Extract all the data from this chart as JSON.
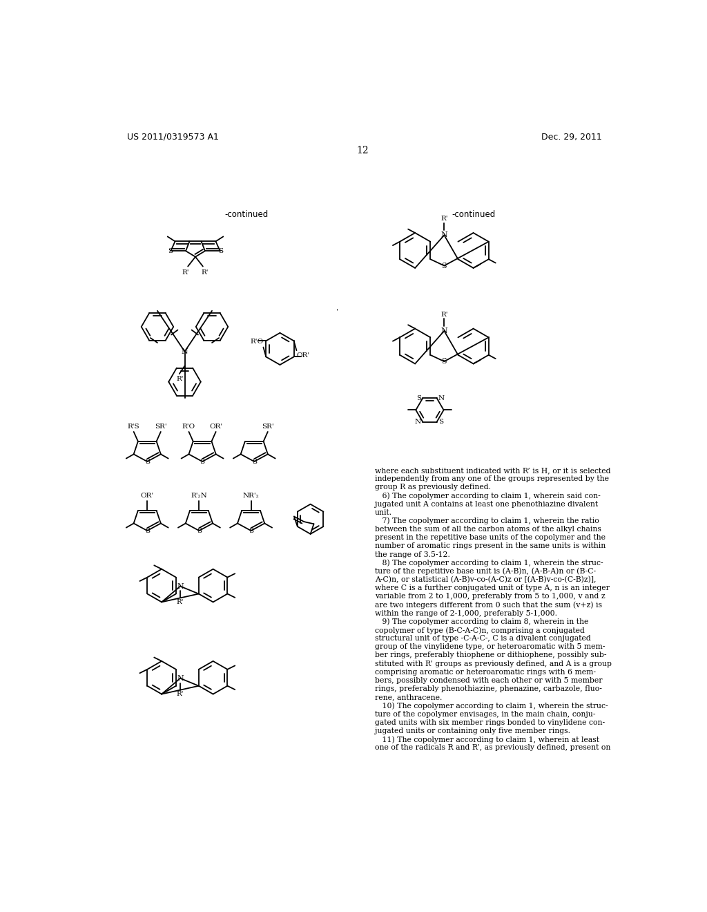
{
  "patent_number": "US 2011/0319573 A1",
  "date": "Dec. 29, 2011",
  "page_number": "12",
  "bg": "#ffffff",
  "tc": "#000000",
  "body_text": [
    "where each substituent indicated with R’ is H, or it is selected",
    "independently from any one of the groups represented by the",
    "group R as previously defined.",
    "   6) The copolymer according to claim 1, wherein said con-",
    "jugated unit A contains at least one phenothiazine divalent",
    "unit.",
    "   7) The copolymer according to claim 1, wherein the ratio",
    "between the sum of all the carbon atoms of the alkyl chains",
    "present in the repetitive base units of the copolymer and the",
    "number of aromatic rings present in the same units is within",
    "the range of 3.5-12.",
    "   8) The copolymer according to claim 1, wherein the struc-",
    "ture of the repetitive base unit is (A-B)n, (A-B-A)n or (B-C-",
    "A-C)n, or statistical (A-B)v-co-(A-C)z or [(A-B)v-co-(C-B)z)],",
    "where C is a further conjugated unit of type A, n is an integer",
    "variable from 2 to 1,000, preferably from 5 to 1,000, v and z",
    "are two integers different from 0 such that the sum (v+z) is",
    "within the range of 2-1,000, preferably 5-1,000.",
    "   9) The copolymer according to claim 8, wherein in the",
    "copolymer of type (B-C-A-C)n, comprising a conjugated",
    "structural unit of type -C-A-C-, C is a divalent conjugated",
    "group of the vinylidene type, or heteroaromatic with 5 mem-",
    "ber rings, preferably thiophene or dithiophene, possibly sub-",
    "stituted with R’ groups as previously defined, and A is a group",
    "comprising aromatic or heteroaromatic rings with 6 mem-",
    "bers, possibly condensed with each other or with 5 member",
    "rings, preferably phenothiazine, phenazine, carbazole, fluo-",
    "rene, anthracene.",
    "   10) The copolymer according to claim 1, wherein the struc-",
    "ture of the copolymer envisages, in the main chain, conju-",
    "gated units with six member rings bonded to vinylidene con-",
    "jugated units or containing only five member rings.",
    "   11) The copolymer according to claim 1, wherein at least",
    "one of the radicals R and R’, as previously defined, present on"
  ]
}
